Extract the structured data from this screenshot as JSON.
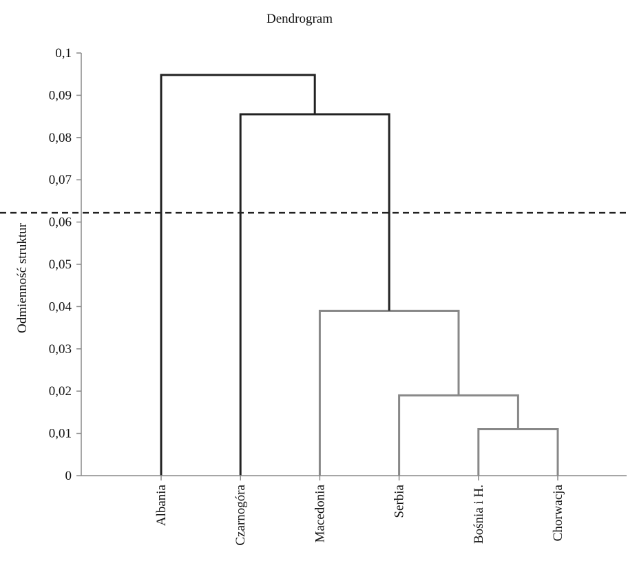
{
  "chart_data": {
    "type": "dendrogram",
    "title": "Dendrogram",
    "ylabel": "Odmienność struktur",
    "xlabel": "",
    "ylim": [
      0,
      0.1
    ],
    "yticks": [
      {
        "value": 0,
        "label": "0"
      },
      {
        "value": 0.01,
        "label": "0,01"
      },
      {
        "value": 0.02,
        "label": "0,02"
      },
      {
        "value": 0.03,
        "label": "0,03"
      },
      {
        "value": 0.04,
        "label": "0,04"
      },
      {
        "value": 0.05,
        "label": "0,05"
      },
      {
        "value": 0.06,
        "label": "0,06"
      },
      {
        "value": 0.07,
        "label": "0,07"
      },
      {
        "value": 0.08,
        "label": "0,08"
      },
      {
        "value": 0.09,
        "label": "0,09"
      },
      {
        "value": 0.1,
        "label": "0,1"
      }
    ],
    "leaves": [
      "Albania",
      "Czarnogóra",
      "Macedonia",
      "Serbia",
      "Bośnia i H.",
      "Chorwacja"
    ],
    "merges": [
      {
        "id": "m1",
        "left": "Bośnia i H.",
        "right": "Chorwacja",
        "height": 0.011,
        "color": "#888888"
      },
      {
        "id": "m2",
        "left": "Serbia",
        "right": "m1",
        "height": 0.019,
        "color": "#888888"
      },
      {
        "id": "m3",
        "left": "Macedonia",
        "right": "m2",
        "height": 0.039,
        "color": "#888888"
      },
      {
        "id": "m4",
        "left": "Czarnogóra",
        "right": "m3",
        "height": 0.0855,
        "color": "#222222"
      },
      {
        "id": "m5",
        "left": "Albania",
        "right": "m4",
        "height": 0.0948,
        "color": "#222222"
      }
    ],
    "cut_line": {
      "value": 0.0622,
      "style": "dashed",
      "color": "#222222"
    },
    "grid": false,
    "colors": {
      "upper_links": "#222222",
      "lower_links": "#888888",
      "axis": "#888888"
    }
  }
}
